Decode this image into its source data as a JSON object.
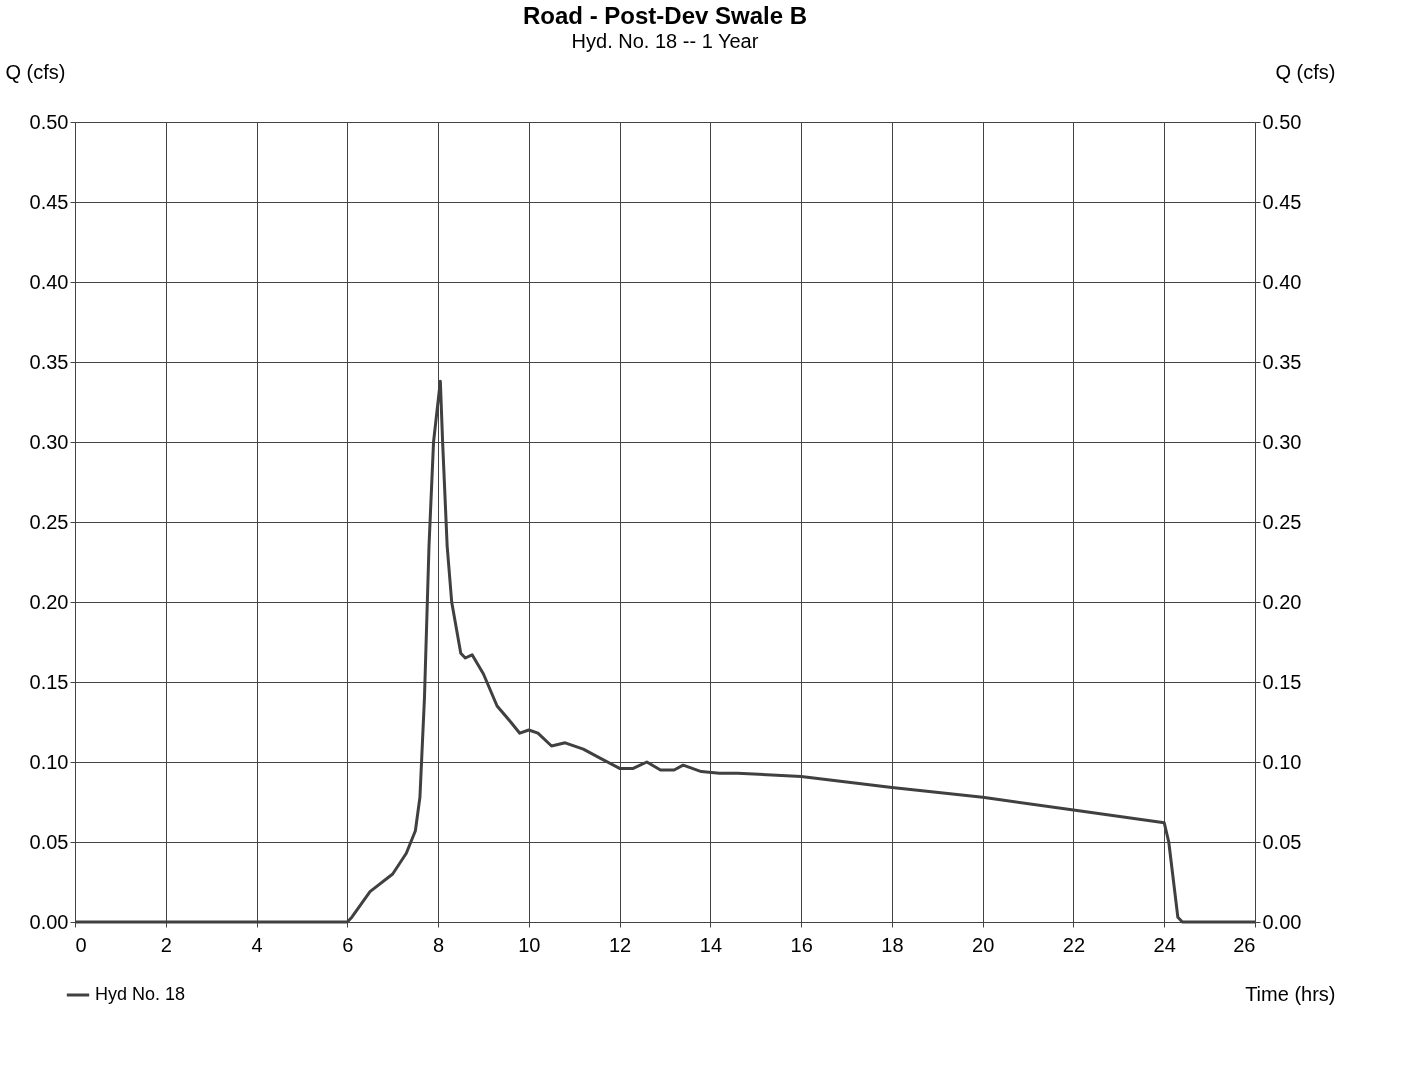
{
  "chart_data": {
    "type": "line",
    "title": "Road - Post-Dev Swale B",
    "subtitle": "Hyd. No. 18 -- 1 Year",
    "xlabel": "Time (hrs)",
    "ylabel": "Q (cfs)",
    "y2label": "Q (cfs)",
    "xlim": [
      0,
      26
    ],
    "xticks": [
      0,
      2,
      4,
      6,
      8,
      10,
      12,
      14,
      16,
      18,
      20,
      22,
      24,
      26
    ],
    "ylim": [
      0,
      0.5
    ],
    "yticks": [
      {
        "value": 0,
        "label": "0.00"
      },
      {
        "value": 0.05,
        "label": "0.05"
      },
      {
        "value": 0.1,
        "label": "0.10"
      },
      {
        "value": 0.15,
        "label": "0.15"
      },
      {
        "value": 0.2,
        "label": "0.20"
      },
      {
        "value": 0.25,
        "label": "0.25"
      },
      {
        "value": 0.3,
        "label": "0.30"
      },
      {
        "value": 0.35,
        "label": "0.35"
      },
      {
        "value": 0.4,
        "label": "0.40"
      },
      {
        "value": 0.45,
        "label": "0.45"
      },
      {
        "value": 0.5,
        "label": "0.50"
      }
    ],
    "y2lim": [
      0,
      0.5
    ],
    "y2ticks": [
      {
        "value": 0,
        "label": "0.00"
      },
      {
        "value": 0.05,
        "label": "0.05"
      },
      {
        "value": 0.1,
        "label": "0.10"
      },
      {
        "value": 0.15,
        "label": "0.15"
      },
      {
        "value": 0.2,
        "label": "0.20"
      },
      {
        "value": 0.25,
        "label": "0.25"
      },
      {
        "value": 0.3,
        "label": "0.30"
      },
      {
        "value": 0.35,
        "label": "0.35"
      },
      {
        "value": 0.4,
        "label": "0.40"
      },
      {
        "value": 0.45,
        "label": "0.45"
      },
      {
        "value": 0.5,
        "label": "0.50"
      }
    ],
    "grid": true,
    "legend": "bottom left",
    "marker": "none",
    "line_style": "solid",
    "series": [
      {
        "name": "Hyd No. 18",
        "color": "#404040",
        "x": [
          0,
          6,
          6.1,
          6.5,
          7.0,
          7.3,
          7.5,
          7.6,
          7.7,
          7.8,
          7.9,
          8.05,
          8.1,
          8.2,
          8.3,
          8.5,
          8.6,
          8.75,
          9.0,
          9.3,
          9.6,
          9.8,
          10.0,
          10.2,
          10.5,
          10.8,
          11.2,
          11.6,
          12.0,
          12.3,
          12.6,
          12.9,
          13.2,
          13.4,
          13.8,
          14.2,
          14.6,
          16,
          18,
          20,
          22,
          24,
          24.1,
          24.3,
          24.4,
          26
        ],
        "values": [
          0,
          0,
          0.003,
          0.019,
          0.03,
          0.043,
          0.057,
          0.078,
          0.14,
          0.235,
          0.3,
          0.338,
          0.3,
          0.235,
          0.2,
          0.168,
          0.165,
          0.167,
          0.155,
          0.135,
          0.125,
          0.118,
          0.12,
          0.118,
          0.11,
          0.112,
          0.108,
          0.102,
          0.096,
          0.096,
          0.1,
          0.095,
          0.095,
          0.098,
          0.094,
          0.093,
          0.093,
          0.091,
          0.084,
          0.078,
          0.07,
          0.062,
          0.05,
          0.003,
          0,
          0
        ]
      }
    ]
  }
}
